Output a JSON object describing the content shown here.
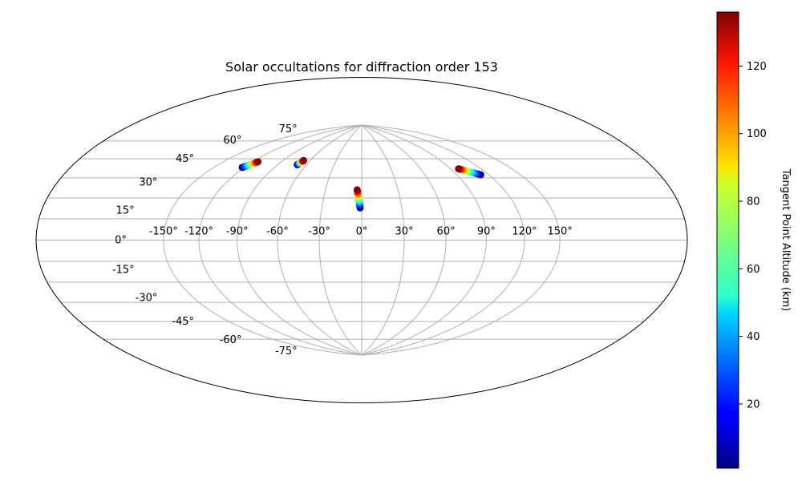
{
  "chart_data": {
    "type": "scatter",
    "projection": "hammer",
    "title": "Solar occultations for diffraction order 153",
    "longitude_ticks": [
      -150,
      -120,
      -90,
      -60,
      -30,
      0,
      30,
      60,
      90,
      120,
      150
    ],
    "latitude_ticks": [
      -75,
      -60,
      -45,
      -30,
      -15,
      0,
      15,
      30,
      45,
      60,
      75
    ],
    "longitude_tick_labels": [
      "-150°",
      "-120°",
      "-90°",
      "-60°",
      "-30°",
      "0°",
      "30°",
      "60°",
      "90°",
      "120°",
      "150°"
    ],
    "latitude_tick_labels": [
      "-75°",
      "-60°",
      "-45°",
      "-30°",
      "-15°",
      "0°",
      "15°",
      "30°",
      "45°",
      "60°",
      "75°"
    ],
    "grid": true,
    "colormap": "jet",
    "colorbar": {
      "label": "Tangent Point Altitude (km)",
      "range": [
        1,
        136
      ],
      "ticks": [
        20,
        40,
        60,
        80,
        100,
        120
      ],
      "tick_labels": [
        "20",
        "40",
        "60",
        "80",
        "100",
        "120"
      ],
      "position": "right"
    },
    "series": [
      {
        "points": [
          {
            "lon": -122.0,
            "lat": 46.8,
            "alt": 1
          },
          {
            "lon": -121.2,
            "lat": 47.3,
            "alt": 15
          },
          {
            "lon": -120.3,
            "lat": 47.9,
            "alt": 30
          },
          {
            "lon": -119.4,
            "lat": 48.5,
            "alt": 45
          },
          {
            "lon": -118.5,
            "lat": 49.1,
            "alt": 60
          },
          {
            "lon": -117.6,
            "lat": 49.7,
            "alt": 75
          },
          {
            "lon": -116.8,
            "lat": 50.3,
            "alt": 90
          },
          {
            "lon": -116.0,
            "lat": 50.9,
            "alt": 105
          },
          {
            "lon": -115.3,
            "lat": 51.4,
            "alt": 120
          },
          {
            "lon": -114.7,
            "lat": 51.8,
            "alt": 135
          }
        ]
      },
      {
        "points": [
          {
            "lon": -69.5,
            "lat": 53.2,
            "alt": 1
          },
          {
            "lon": -69.2,
            "lat": 53.8,
            "alt": 20
          },
          {
            "lon": -68.9,
            "lat": 54.3,
            "alt": 40
          },
          {
            "lon": -68.6,
            "lat": 54.8,
            "alt": 60
          },
          {
            "lon": -68.3,
            "lat": 55.3,
            "alt": 80
          },
          {
            "lon": -67.9,
            "lat": 55.8,
            "alt": 100
          },
          {
            "lon": -67.5,
            "lat": 56.2,
            "alt": 120
          },
          {
            "lon": -67.2,
            "lat": 56.6,
            "alt": 135
          }
        ]
      },
      {
        "points": [
          {
            "lon": -1.2,
            "lat": 22.9,
            "alt": 1
          },
          {
            "lon": -1.4,
            "lat": 24.1,
            "alt": 12
          },
          {
            "lon": -1.6,
            "lat": 25.3,
            "alt": 24
          },
          {
            "lon": -1.8,
            "lat": 26.5,
            "alt": 36
          },
          {
            "lon": -2.0,
            "lat": 27.7,
            "alt": 48
          },
          {
            "lon": -2.3,
            "lat": 28.9,
            "alt": 60
          },
          {
            "lon": -2.5,
            "lat": 30.1,
            "alt": 72
          },
          {
            "lon": -2.8,
            "lat": 31.3,
            "alt": 84
          },
          {
            "lon": -3.0,
            "lat": 32.5,
            "alt": 96
          },
          {
            "lon": -3.3,
            "lat": 33.7,
            "alt": 108
          },
          {
            "lon": -3.5,
            "lat": 34.9,
            "alt": 120
          },
          {
            "lon": -3.7,
            "lat": 35.9,
            "alt": 135
          }
        ]
      },
      {
        "points": [
          {
            "lon": 112.5,
            "lat": 42.4,
            "alt": 1
          },
          {
            "lon": 110.7,
            "lat": 43.1,
            "alt": 15
          },
          {
            "lon": 108.9,
            "lat": 43.8,
            "alt": 30
          },
          {
            "lon": 107.1,
            "lat": 44.5,
            "alt": 45
          },
          {
            "lon": 105.4,
            "lat": 45.2,
            "alt": 60
          },
          {
            "lon": 103.7,
            "lat": 45.9,
            "alt": 75
          },
          {
            "lon": 102.1,
            "lat": 46.5,
            "alt": 90
          },
          {
            "lon": 100.6,
            "lat": 47.1,
            "alt": 105
          },
          {
            "lon": 99.2,
            "lat": 47.6,
            "alt": 120
          },
          {
            "lon": 98.0,
            "lat": 48.0,
            "alt": 135
          }
        ]
      }
    ]
  }
}
